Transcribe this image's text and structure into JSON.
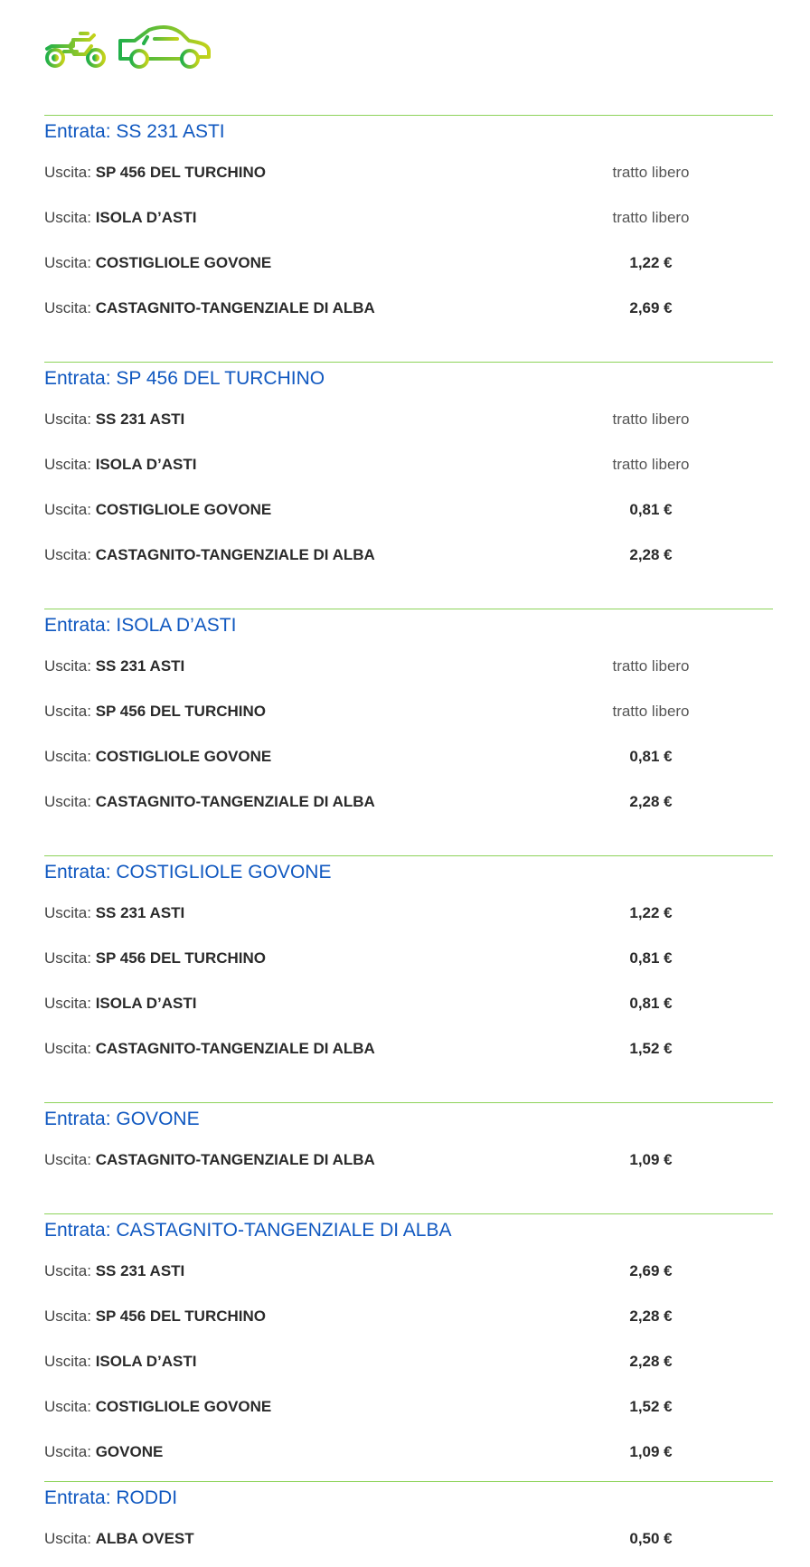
{
  "vehicle_icons": [
    "motorcycle-icon",
    "car-icon"
  ],
  "colors": {
    "heading": "#1058c0",
    "divider": "#8dd35a",
    "icon_start": "#22b04a",
    "icon_end": "#c3d21a"
  },
  "entry_prefix": "Entrata:",
  "exit_prefix": "Uscita:",
  "sections": [
    {
      "entry": "SS 231 ASTI",
      "exits": [
        {
          "name": "SP 456 DEL TURCHINO",
          "price": "tratto libero"
        },
        {
          "name": "ISOLA D’ASTI",
          "price": "tratto libero"
        },
        {
          "name": "COSTIGLIOLE GOVONE",
          "price": "1,22 €"
        },
        {
          "name": "CASTAGNITO-TANGENZIALE DI ALBA",
          "price": "2,69 €"
        }
      ]
    },
    {
      "entry": "SP 456 DEL TURCHINO",
      "exits": [
        {
          "name": "SS 231 ASTI",
          "price": "tratto libero"
        },
        {
          "name": "ISOLA D’ASTI",
          "price": "tratto libero"
        },
        {
          "name": "COSTIGLIOLE GOVONE",
          "price": "0,81 €"
        },
        {
          "name": "CASTAGNITO-TANGENZIALE DI ALBA",
          "price": "2,28 €"
        }
      ]
    },
    {
      "entry": "ISOLA D’ASTI",
      "exits": [
        {
          "name": "SS 231 ASTI",
          "price": "tratto libero"
        },
        {
          "name": "SP 456 DEL TURCHINO",
          "price": "tratto libero"
        },
        {
          "name": "COSTIGLIOLE GOVONE",
          "price": "0,81 €"
        },
        {
          "name": "CASTAGNITO-TANGENZIALE DI ALBA",
          "price": "2,28 €"
        }
      ]
    },
    {
      "entry": "COSTIGLIOLE GOVONE",
      "exits": [
        {
          "name": "SS 231 ASTI",
          "price": "1,22 €"
        },
        {
          "name": "SP 456 DEL TURCHINO",
          "price": "0,81 €"
        },
        {
          "name": "ISOLA D’ASTI",
          "price": "0,81 €"
        },
        {
          "name": "CASTAGNITO-TANGENZIALE DI ALBA",
          "price": "1,52 €"
        }
      ]
    },
    {
      "entry": "GOVONE",
      "exits": [
        {
          "name": "CASTAGNITO-TANGENZIALE DI ALBA",
          "price": "1,09 €"
        }
      ]
    },
    {
      "entry": "CASTAGNITO-TANGENZIALE DI ALBA",
      "exits": [
        {
          "name": "SS 231 ASTI",
          "price": "2,69 €"
        },
        {
          "name": "SP 456 DEL TURCHINO",
          "price": "2,28 €"
        },
        {
          "name": "ISOLA D’ASTI",
          "price": "2,28 €"
        },
        {
          "name": "COSTIGLIOLE GOVONE",
          "price": "1,52 €"
        },
        {
          "name": "GOVONE",
          "price": "1,09 €"
        }
      ]
    },
    {
      "entry": "RODDI",
      "exits": [
        {
          "name": "ALBA OVEST",
          "price": "0,50 €"
        }
      ]
    }
  ]
}
